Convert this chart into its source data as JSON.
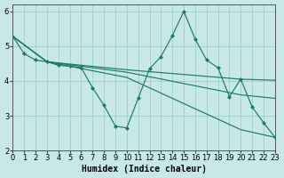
{
  "xlabel": "Humidex (Indice chaleur)",
  "xlim": [
    0,
    23
  ],
  "ylim": [
    2,
    6.2
  ],
  "background_color": "#c8e8e8",
  "grid_color": "#9ecece",
  "line_color": "#1a7a6e",
  "line_main": {
    "x": [
      0,
      1,
      2,
      3,
      4,
      5,
      6,
      7,
      8,
      9,
      10,
      11,
      12,
      13,
      14,
      15,
      16,
      17,
      18,
      19,
      20,
      21,
      22,
      23
    ],
    "y": [
      5.28,
      4.78,
      4.6,
      4.55,
      4.45,
      4.42,
      4.38,
      3.8,
      3.3,
      2.7,
      2.65,
      3.5,
      4.35,
      4.7,
      5.3,
      6.0,
      5.2,
      4.6,
      4.38,
      3.55,
      4.05,
      3.25,
      2.8,
      2.38
    ]
  },
  "line_a": {
    "x": [
      0,
      3,
      10,
      20,
      23
    ],
    "y": [
      5.28,
      4.55,
      4.32,
      4.05,
      4.02
    ]
  },
  "line_b": {
    "x": [
      0,
      3,
      10,
      20,
      23
    ],
    "y": [
      5.28,
      4.55,
      4.25,
      3.6,
      3.5
    ]
  },
  "line_c": {
    "x": [
      0,
      3,
      10,
      20,
      23
    ],
    "y": [
      5.28,
      4.55,
      4.1,
      2.6,
      2.38
    ]
  },
  "xticks": [
    0,
    1,
    2,
    3,
    4,
    5,
    6,
    7,
    8,
    9,
    10,
    11,
    12,
    13,
    14,
    15,
    16,
    17,
    18,
    19,
    20,
    21,
    22,
    23
  ],
  "yticks": [
    2,
    3,
    4,
    5,
    6
  ],
  "tick_fontsize": 6,
  "label_fontsize": 7
}
